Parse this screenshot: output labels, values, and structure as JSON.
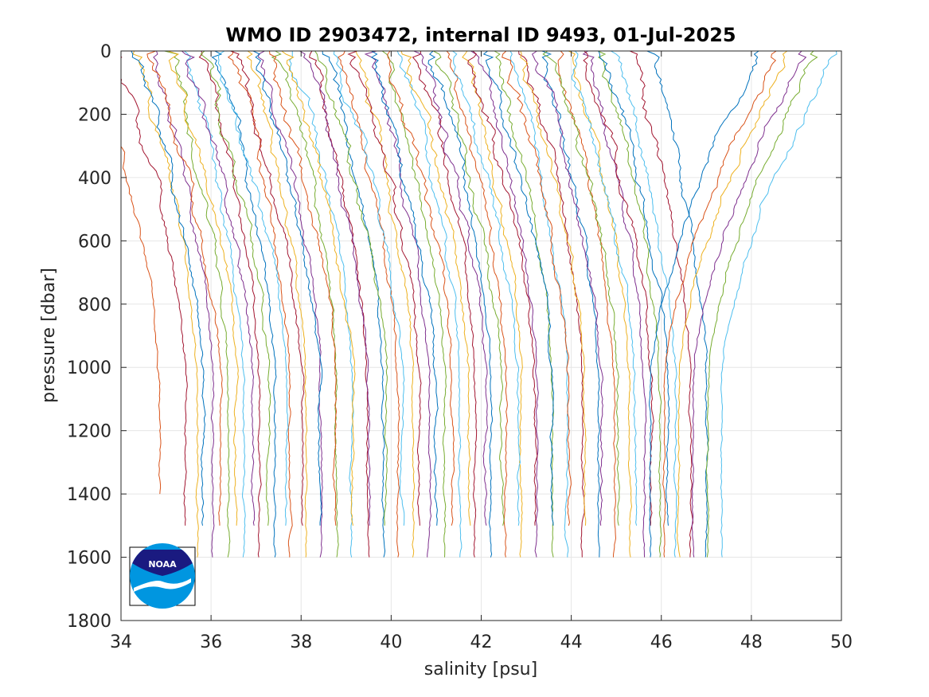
{
  "chart_data": {
    "type": "line",
    "title": "WMO ID 2903472, internal ID 9493, 01-Jul-2025",
    "xlabel": "salinity [psu]",
    "ylabel": "pressure [dbar]",
    "xlim": [
      34,
      50
    ],
    "ylim": [
      0,
      1800
    ],
    "y_reversed": true,
    "grid": true,
    "x_ticks": [
      "34",
      "36",
      "38",
      "40",
      "42",
      "44",
      "46",
      "48",
      "50"
    ],
    "y_ticks": [
      "0",
      "200",
      "400",
      "600",
      "800",
      "1000",
      "1200",
      "1400",
      "1600",
      "1800"
    ],
    "colors": [
      "#0072BD",
      "#D95319",
      "#EDB120",
      "#7E2F8E",
      "#77AC30",
      "#4DBEEE",
      "#A2142F"
    ],
    "logo": {
      "text": "NOAA",
      "dark": "#1a1a80",
      "light": "#0096e0"
    },
    "series_groups": [
      {
        "x_start": 35.7,
        "x_end": 47.0,
        "count": 34,
        "surface_shift": -1.3,
        "bottom": 1600,
        "start_color": 2,
        "amplitude": 0.035
      },
      {
        "x_start": 35.45,
        "x_end": 46.15,
        "count": 30,
        "surface_shift": -1.5,
        "bottom": 1500,
        "start_color": 6,
        "amplitude": 0.04
      },
      {
        "x_start": 34.85,
        "x_end": 34.85,
        "count": 1,
        "surface_shift": -1.5,
        "bottom": 1400,
        "start_color": 1,
        "amplitude": 0.03
      },
      {
        "x_start": 45.75,
        "x_end": 47.35,
        "count": 6,
        "surface_shift": 2.5,
        "bottom": 1600,
        "start_color": 0,
        "amplitude": 0.03
      }
    ]
  }
}
